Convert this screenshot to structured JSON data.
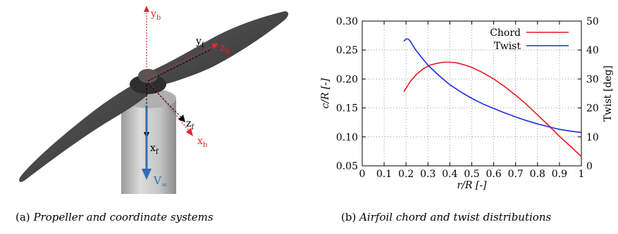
{
  "left_panel": {
    "caption_label": "(a)",
    "caption_text": "Propeller and coordinate systems",
    "axis_labels": {
      "yb": "y",
      "yb_sub": "b",
      "yf": "y",
      "yf_sub": "f",
      "zb": "z",
      "zb_sub": "b",
      "zf": "z",
      "zf_sub": "f",
      "xb": "x",
      "xb_sub": "b",
      "xf": "x",
      "xf_sub": "f",
      "vinf": "V",
      "vinf_sub": "∞"
    },
    "colors": {
      "body_frame": "#e0282e",
      "flow_frame": "#000000",
      "freestream": "#2f6db5",
      "propeller": "#4a4a4a",
      "nacelle": "#c8c8c8"
    }
  },
  "right_panel": {
    "caption_label": "(b)",
    "caption_text": "Airfoil chord and twist distributions",
    "colors": {
      "chord": "#e8191f",
      "twist": "#1c2ce0"
    }
  },
  "chart_data": {
    "type": "line",
    "xlabel": "r/R [-]",
    "ylabel": "c/R [-]",
    "y2label": "Twist [deg]",
    "xlim": [
      0,
      1
    ],
    "ylim": [
      0.05,
      0.3
    ],
    "y2lim": [
      0,
      50
    ],
    "x_ticks": [
      "0",
      "0.1",
      "0.2",
      "0.3",
      "0.4",
      "0.5",
      "0.6",
      "0.7",
      "0.8",
      "0.9",
      "1"
    ],
    "y_ticks": [
      "0.05",
      "0.10",
      "0.15",
      "0.20",
      "0.25",
      "0.30"
    ],
    "y2_ticks": [
      "0",
      "10",
      "20",
      "30",
      "40",
      "50"
    ],
    "grid": true,
    "legend_position": "top-right",
    "series": [
      {
        "name": "Chord",
        "axis": "left",
        "x": [
          0.19,
          0.22,
          0.25,
          0.28,
          0.31,
          0.34,
          0.37,
          0.4,
          0.43,
          0.46,
          0.5,
          0.55,
          0.6,
          0.65,
          0.7,
          0.75,
          0.8,
          0.85,
          0.9,
          0.95,
          1.0
        ],
        "y": [
          0.178,
          0.196,
          0.209,
          0.218,
          0.224,
          0.227,
          0.229,
          0.229,
          0.228,
          0.225,
          0.22,
          0.211,
          0.2,
          0.187,
          0.172,
          0.156,
          0.138,
          0.12,
          0.101,
          0.084,
          0.066
        ]
      },
      {
        "name": "Twist",
        "axis": "right",
        "x": [
          0.19,
          0.2,
          0.21,
          0.22,
          0.24,
          0.27,
          0.3,
          0.35,
          0.4,
          0.45,
          0.5,
          0.55,
          0.6,
          0.65,
          0.7,
          0.75,
          0.8,
          0.85,
          0.9,
          0.95,
          1.0
        ],
        "y": [
          43.0,
          43.8,
          43.8,
          43.0,
          40.5,
          37.5,
          34.8,
          31.2,
          28.0,
          25.5,
          23.3,
          21.4,
          19.8,
          18.3,
          16.9,
          15.6,
          14.5,
          13.5,
          12.6,
          12.0,
          11.5
        ]
      }
    ]
  }
}
